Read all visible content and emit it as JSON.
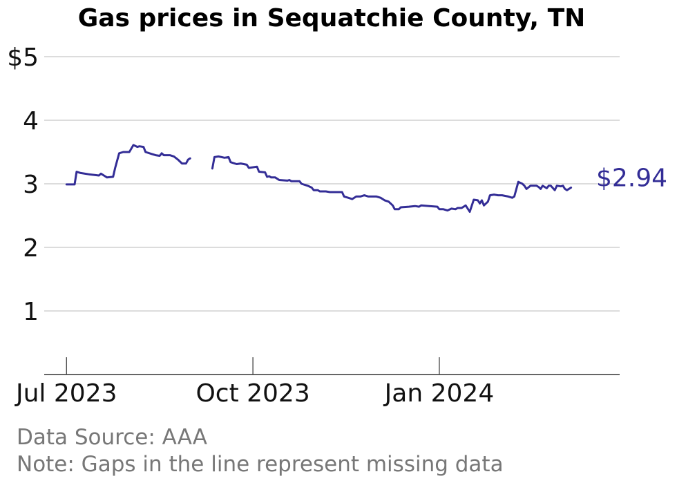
{
  "chart_data": {
    "type": "line",
    "title": "Gas prices in Sequatchie County, TN",
    "ylim": [
      0,
      5
    ],
    "y_ticks": [
      {
        "value": 1,
        "label": "1"
      },
      {
        "value": 2,
        "label": "2"
      },
      {
        "value": 3,
        "label": "3"
      },
      {
        "value": 4,
        "label": "4"
      },
      {
        "value": 5,
        "label": "$5"
      }
    ],
    "x_ticks": [
      {
        "date": "2023-07-01",
        "label": "Jul 2023"
      },
      {
        "date": "2023-10-01",
        "label": "Oct 2023"
      },
      {
        "date": "2024-01-01",
        "label": "Jan 2024"
      }
    ],
    "x_range": [
      "2023-06-20",
      "2024-03-30"
    ],
    "grid": true,
    "line_color": "#332d96",
    "end_label": "$2.94",
    "series": [
      {
        "segments": [
          [
            [
              "2023-07-01",
              2.99
            ],
            [
              "2023-07-05",
              2.99
            ],
            [
              "2023-07-06",
              3.19
            ],
            [
              "2023-07-08",
              3.17
            ],
            [
              "2023-07-12",
              3.15
            ],
            [
              "2023-07-17",
              3.13
            ],
            [
              "2023-07-18",
              3.16
            ],
            [
              "2023-07-20",
              3.12
            ],
            [
              "2023-07-21",
              3.1
            ],
            [
              "2023-07-24",
              3.11
            ],
            [
              "2023-07-25",
              3.25
            ],
            [
              "2023-07-27",
              3.48
            ],
            [
              "2023-07-29",
              3.5
            ],
            [
              "2023-08-01",
              3.5
            ],
            [
              "2023-08-03",
              3.61
            ],
            [
              "2023-08-05",
              3.58
            ],
            [
              "2023-08-06",
              3.59
            ],
            [
              "2023-08-08",
              3.58
            ],
            [
              "2023-08-09",
              3.5
            ],
            [
              "2023-08-12",
              3.47
            ],
            [
              "2023-08-14",
              3.45
            ],
            [
              "2023-08-16",
              3.44
            ],
            [
              "2023-08-17",
              3.48
            ],
            [
              "2023-08-18",
              3.45
            ],
            [
              "2023-08-21",
              3.45
            ],
            [
              "2023-08-23",
              3.43
            ],
            [
              "2023-08-25",
              3.38
            ],
            [
              "2023-08-27",
              3.32
            ],
            [
              "2023-08-29",
              3.32
            ],
            [
              "2023-08-30",
              3.38
            ],
            [
              "2023-08-31",
              3.4
            ]
          ],
          [
            [
              "2023-09-11",
              3.24
            ],
            [
              "2023-09-12",
              3.42
            ],
            [
              "2023-09-14",
              3.43
            ],
            [
              "2023-09-17",
              3.41
            ],
            [
              "2023-09-19",
              3.42
            ],
            [
              "2023-09-20",
              3.34
            ],
            [
              "2023-09-23",
              3.31
            ],
            [
              "2023-09-25",
              3.32
            ],
            [
              "2023-09-28",
              3.3
            ],
            [
              "2023-09-29",
              3.25
            ],
            [
              "2023-10-01",
              3.26
            ],
            [
              "2023-10-03",
              3.27
            ],
            [
              "2023-10-04",
              3.19
            ],
            [
              "2023-10-07",
              3.18
            ],
            [
              "2023-10-08",
              3.11
            ],
            [
              "2023-10-09",
              3.12
            ],
            [
              "2023-10-10",
              3.1
            ],
            [
              "2023-10-12",
              3.1
            ],
            [
              "2023-10-14",
              3.06
            ],
            [
              "2023-10-18",
              3.05
            ],
            [
              "2023-10-19",
              3.06
            ],
            [
              "2023-10-20",
              3.04
            ],
            [
              "2023-10-24",
              3.04
            ],
            [
              "2023-10-25",
              3.0
            ],
            [
              "2023-10-28",
              2.97
            ],
            [
              "2023-10-30",
              2.94
            ],
            [
              "2023-10-31",
              2.9
            ],
            [
              "2023-11-02",
              2.9
            ],
            [
              "2023-11-03",
              2.88
            ],
            [
              "2023-11-06",
              2.88
            ],
            [
              "2023-11-08",
              2.87
            ],
            [
              "2023-11-14",
              2.87
            ],
            [
              "2023-11-15",
              2.8
            ],
            [
              "2023-11-17",
              2.78
            ],
            [
              "2023-11-19",
              2.76
            ],
            [
              "2023-11-21",
              2.8
            ],
            [
              "2023-11-23",
              2.8
            ],
            [
              "2023-11-25",
              2.82
            ],
            [
              "2023-11-27",
              2.8
            ],
            [
              "2023-11-29",
              2.8
            ],
            [
              "2023-12-01",
              2.8
            ],
            [
              "2023-12-03",
              2.78
            ],
            [
              "2023-12-05",
              2.74
            ],
            [
              "2023-12-07",
              2.72
            ],
            [
              "2023-12-09",
              2.66
            ],
            [
              "2023-12-10",
              2.6
            ],
            [
              "2023-12-12",
              2.6
            ],
            [
              "2023-12-13",
              2.63
            ],
            [
              "2023-12-17",
              2.64
            ],
            [
              "2023-12-20",
              2.65
            ],
            [
              "2023-12-22",
              2.64
            ],
            [
              "2023-12-23",
              2.66
            ],
            [
              "2023-12-27",
              2.65
            ],
            [
              "2023-12-31",
              2.64
            ],
            [
              "2024-01-01",
              2.6
            ],
            [
              "2024-01-03",
              2.6
            ],
            [
              "2024-01-05",
              2.58
            ],
            [
              "2024-01-07",
              2.61
            ],
            [
              "2024-01-09",
              2.6
            ],
            [
              "2024-01-10",
              2.62
            ],
            [
              "2024-01-12",
              2.62
            ],
            [
              "2024-01-14",
              2.66
            ],
            [
              "2024-01-16",
              2.56
            ],
            [
              "2024-01-18",
              2.75
            ],
            [
              "2024-01-20",
              2.74
            ],
            [
              "2024-01-21",
              2.69
            ],
            [
              "2024-01-22",
              2.74
            ],
            [
              "2024-01-23",
              2.66
            ],
            [
              "2024-01-25",
              2.72
            ],
            [
              "2024-01-26",
              2.82
            ],
            [
              "2024-01-28",
              2.83
            ],
            [
              "2024-01-30",
              2.82
            ],
            [
              "2024-02-01",
              2.82
            ],
            [
              "2024-02-04",
              2.8
            ],
            [
              "2024-02-06",
              2.78
            ],
            [
              "2024-02-07",
              2.8
            ],
            [
              "2024-02-09",
              3.03
            ],
            [
              "2024-02-11",
              3.0
            ],
            [
              "2024-02-12",
              2.97
            ],
            [
              "2024-02-13",
              2.92
            ],
            [
              "2024-02-15",
              2.97
            ],
            [
              "2024-02-18",
              2.97
            ],
            [
              "2024-02-19",
              2.95
            ],
            [
              "2024-02-20",
              2.92
            ],
            [
              "2024-02-21",
              2.97
            ],
            [
              "2024-02-23",
              2.93
            ],
            [
              "2024-02-24",
              2.97
            ],
            [
              "2024-02-25",
              2.97
            ],
            [
              "2024-02-27",
              2.9
            ],
            [
              "2024-02-28",
              2.97
            ],
            [
              "2024-03-01",
              2.96
            ],
            [
              "2024-03-02",
              2.97
            ],
            [
              "2024-03-03",
              2.92
            ],
            [
              "2024-03-04",
              2.9
            ],
            [
              "2024-03-06",
              2.94
            ]
          ]
        ]
      }
    ]
  },
  "notes": {
    "source": "Data Source: AAA",
    "note": "Note: Gaps in the line represent missing data"
  }
}
